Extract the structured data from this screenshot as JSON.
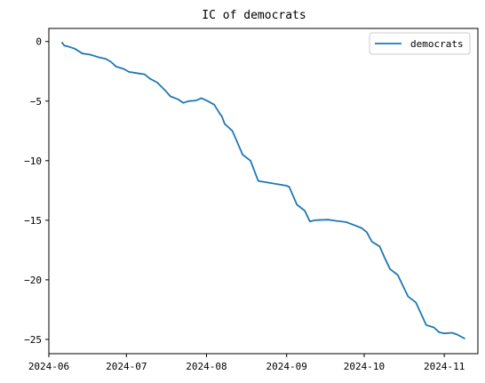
{
  "chart_data": {
    "type": "line",
    "title": "IC of democrats",
    "xlabel": "",
    "ylabel": "",
    "x_tick_labels": [
      "2024-06",
      "2024-07",
      "2024-08",
      "2024-09",
      "2024-10",
      "2024-11"
    ],
    "y_ticks": [
      0,
      -5,
      -10,
      -15,
      -20,
      -25
    ],
    "y_tick_labels": [
      "0",
      "−5",
      "−10",
      "−15",
      "−20",
      "−25"
    ],
    "ylim": [
      -26.2,
      1.1
    ],
    "xlim": [
      "2024-06-01",
      "2024-11-14"
    ],
    "grid": false,
    "legend_position": "top-right",
    "series": [
      {
        "name": "democrats",
        "color": "#1f77b4",
        "points": [
          [
            "2024-06-06",
            -0.05
          ],
          [
            "2024-06-07",
            -0.35
          ],
          [
            "2024-06-09",
            -0.45
          ],
          [
            "2024-06-11",
            -0.6
          ],
          [
            "2024-06-14",
            -1.0
          ],
          [
            "2024-06-17",
            -1.1
          ],
          [
            "2024-06-20",
            -1.3
          ],
          [
            "2024-06-23",
            -1.45
          ],
          [
            "2024-06-25",
            -1.7
          ],
          [
            "2024-06-27",
            -2.1
          ],
          [
            "2024-06-30",
            -2.3
          ],
          [
            "2024-07-02",
            -2.55
          ],
          [
            "2024-07-05",
            -2.65
          ],
          [
            "2024-07-08",
            -2.75
          ],
          [
            "2024-07-10",
            -3.1
          ],
          [
            "2024-07-13",
            -3.45
          ],
          [
            "2024-07-16",
            -4.1
          ],
          [
            "2024-07-18",
            -4.6
          ],
          [
            "2024-07-21",
            -4.85
          ],
          [
            "2024-07-23",
            -5.15
          ],
          [
            "2024-07-25",
            -5.0
          ],
          [
            "2024-07-28",
            -4.95
          ],
          [
            "2024-07-30",
            -4.75
          ],
          [
            "2024-08-01",
            -4.95
          ],
          [
            "2024-08-04",
            -5.3
          ],
          [
            "2024-08-06",
            -6.0
          ],
          [
            "2024-08-07",
            -6.3
          ],
          [
            "2024-08-08",
            -6.9
          ],
          [
            "2024-08-11",
            -7.5
          ],
          [
            "2024-08-13",
            -8.5
          ],
          [
            "2024-08-15",
            -9.5
          ],
          [
            "2024-08-18",
            -10.0
          ],
          [
            "2024-08-21",
            -11.7
          ],
          [
            "2024-09-01",
            -12.1
          ],
          [
            "2024-09-02",
            -12.2
          ],
          [
            "2024-09-05",
            -13.7
          ],
          [
            "2024-09-08",
            -14.2
          ],
          [
            "2024-09-10",
            -15.1
          ],
          [
            "2024-09-12",
            -15.0
          ],
          [
            "2024-09-17",
            -14.95
          ],
          [
            "2024-09-20",
            -15.05
          ],
          [
            "2024-09-24",
            -15.15
          ],
          [
            "2024-09-27",
            -15.4
          ],
          [
            "2024-09-30",
            -15.65
          ],
          [
            "2024-10-02",
            -16.0
          ],
          [
            "2024-10-04",
            -16.8
          ],
          [
            "2024-10-07",
            -17.2
          ],
          [
            "2024-10-09",
            -18.2
          ],
          [
            "2024-10-11",
            -19.1
          ],
          [
            "2024-10-14",
            -19.6
          ],
          [
            "2024-10-16",
            -20.5
          ],
          [
            "2024-10-18",
            -21.4
          ],
          [
            "2024-10-21",
            -21.9
          ],
          [
            "2024-10-25",
            -23.8
          ],
          [
            "2024-10-28",
            -24.0
          ],
          [
            "2024-10-30",
            -24.4
          ],
          [
            "2024-11-01",
            -24.5
          ],
          [
            "2024-11-04",
            -24.45
          ],
          [
            "2024-11-06",
            -24.6
          ],
          [
            "2024-11-09",
            -24.95
          ]
        ]
      }
    ]
  }
}
